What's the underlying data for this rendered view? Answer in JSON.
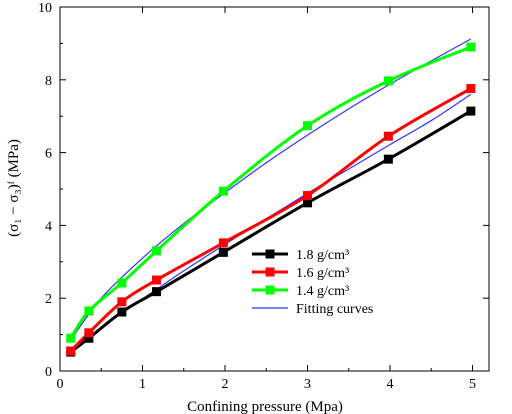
{
  "chart_data": {
    "type": "line",
    "xlabel": "Confining pressure (Mpa)",
    "ylabel": "(σ₁ − σ₃)ᶠ (MPa)",
    "xlim": [
      0,
      5.2
    ],
    "ylim": [
      0,
      10
    ],
    "xticks": [
      0,
      1,
      2,
      3,
      4,
      5
    ],
    "yticks": [
      0,
      2,
      4,
      6,
      8,
      10
    ],
    "grid": false,
    "legend_position": "center-right",
    "series": [
      {
        "name": "1.8 g/cm³",
        "color": "#000000",
        "marker": "square",
        "x": [
          0.13,
          0.35,
          0.75,
          1.17,
          1.98,
          3.0,
          3.98,
          4.98
        ],
        "y": [
          0.52,
          0.9,
          1.62,
          2.18,
          3.26,
          4.62,
          5.82,
          7.14
        ]
      },
      {
        "name": "1.6 g/cm³",
        "color": "#ff0000",
        "marker": "square",
        "x": [
          0.13,
          0.35,
          0.75,
          1.17,
          1.98,
          3.0,
          3.98,
          4.98
        ],
        "y": [
          0.55,
          1.05,
          1.9,
          2.5,
          3.52,
          4.82,
          6.45,
          7.76
        ]
      },
      {
        "name": "1.4 g/cm³",
        "color": "#00ff00",
        "marker": "square",
        "x": [
          0.13,
          0.35,
          0.75,
          1.17,
          1.98,
          3.0,
          3.98,
          4.98
        ],
        "y": [
          0.9,
          1.65,
          2.42,
          3.3,
          4.94,
          6.74,
          7.97,
          8.9
        ]
      },
      {
        "name": "Fitting curves",
        "color": "#3333ff",
        "marker": "none",
        "fits": [
          {
            "x": [
              0.13,
              0.5,
              1.0,
              1.5,
              2.0,
              2.5,
              3.0,
              3.5,
              4.0,
              4.5,
              4.98
            ],
            "y": [
              0.55,
              1.2,
              1.98,
              2.75,
              3.48,
              4.18,
              4.88,
              5.55,
              6.22,
              6.88,
              7.6
            ]
          },
          {
            "x": [
              0.13,
              0.5,
              1.0,
              1.5,
              2.0,
              2.5,
              3.0,
              3.5,
              4.0,
              4.5,
              4.98
            ],
            "y": [
              0.85,
              2.0,
              3.1,
              4.05,
              4.9,
              5.72,
              6.48,
              7.2,
              7.88,
              8.52,
              9.12
            ]
          }
        ]
      }
    ]
  }
}
